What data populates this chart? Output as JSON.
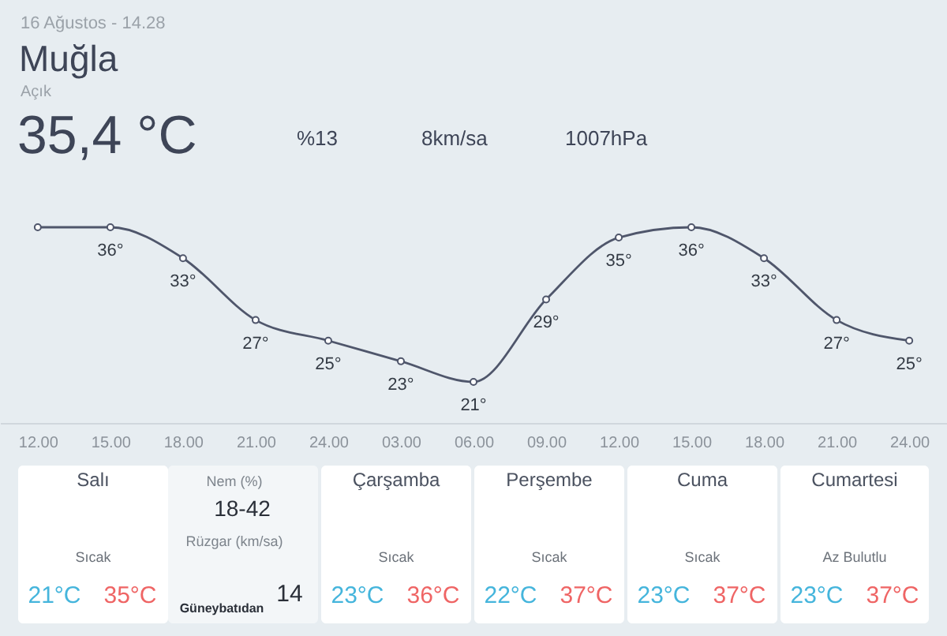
{
  "chart_data": [
    {
      "type": "other",
      "title": "Muğla",
      "subtitle": "Açık",
      "annotations": [
        "16 Ağustos - 14.28",
        "35,4 °C",
        "%13",
        "8km/sa",
        "1007hPa"
      ]
    },
    {
      "type": "line",
      "categories": [
        "12.00",
        "15.00",
        "18.00",
        "21.00",
        "24.00",
        "03.00",
        "06.00",
        "09.00",
        "12.00",
        "15.00",
        "18.00",
        "21.00",
        "24.00"
      ],
      "values": [
        36,
        36,
        33,
        27,
        25,
        23,
        21,
        29,
        35,
        36,
        33,
        27,
        25
      ],
      "value_labels": [
        null,
        "36°",
        "33°",
        "27°",
        "25°",
        "23°",
        "21°",
        "29°",
        "35°",
        "36°",
        "33°",
        "27°",
        "25°"
      ],
      "color": "#4f566b",
      "tick_labels": "x",
      "marker": "circle",
      "line_style": "solid"
    },
    {
      "type": "other",
      "annotations": [
        "Salı",
        "Sıcak",
        "21°C",
        "35°C",
        "Nem (%)",
        "18-42",
        "Rüzgar (km/sa)",
        "Güneybatıdan",
        "14",
        "Çarşamba",
        "Sıcak",
        "23°C",
        "36°C",
        "Perşembe",
        "Sıcak",
        "22°C",
        "37°C",
        "Cuma",
        "Sıcak",
        "23°C",
        "37°C",
        "Cumartesi",
        "Az Bulutlu",
        "23°C",
        "37°C"
      ]
    }
  ]
}
